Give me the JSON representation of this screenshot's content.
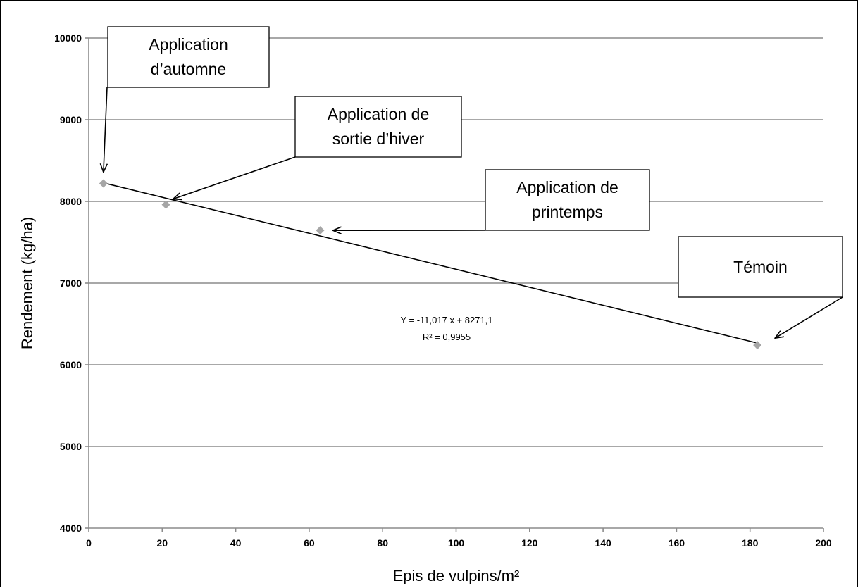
{
  "chart_data": {
    "type": "scatter",
    "xlabel": "Epis de vulpins/m²",
    "ylabel": "Rendement (kg/ha)",
    "xlim": [
      0,
      200
    ],
    "ylim": [
      4000,
      10000
    ],
    "x_ticks": [
      0,
      20,
      40,
      60,
      80,
      100,
      120,
      140,
      160,
      180,
      200
    ],
    "y_ticks": [
      4000,
      5000,
      6000,
      7000,
      8000,
      9000,
      10000
    ],
    "grid": "horizontal",
    "points": [
      {
        "x": 4,
        "y": 8220
      },
      {
        "x": 21,
        "y": 7960
      },
      {
        "x": 63,
        "y": 7645
      },
      {
        "x": 182,
        "y": 6240
      }
    ],
    "point_color": "#a6a6a6",
    "trendline": {
      "slope": -11.017,
      "intercept": 8271.1,
      "x_range": [
        4,
        182
      ]
    },
    "equation": [
      "Y = -11,017 x + 8271,1",
      "R² = 0,9955"
    ],
    "annotations": [
      {
        "lines": [
          "Application",
          "d’automne"
        ],
        "target_point": 0
      },
      {
        "lines": [
          "Application de",
          "sortie d’hiver"
        ],
        "target_point": 1
      },
      {
        "lines": [
          "Application de",
          "printemps"
        ],
        "target_point": 2
      },
      {
        "lines": [
          "Témoin"
        ],
        "target_point": 3
      }
    ]
  }
}
